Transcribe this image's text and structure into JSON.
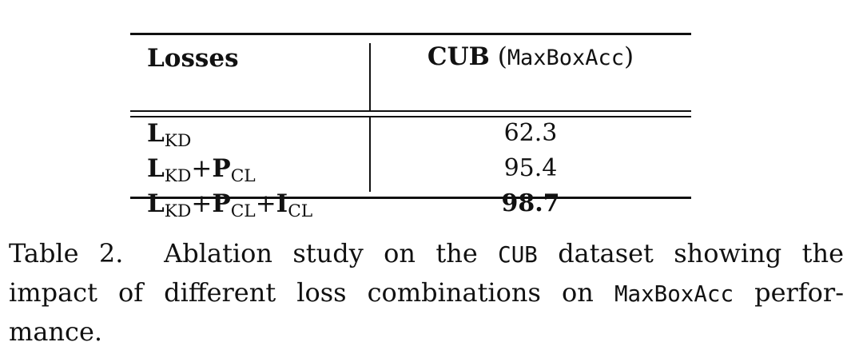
{
  "table": {
    "header": {
      "losses": "Losses",
      "metric_dataset": "CUB",
      "metric_name": "MaxBoxAcc"
    },
    "rows": [
      {
        "terms": [
          {
            "sym": "L",
            "sub": "KD"
          }
        ],
        "value": "62.3",
        "best": false
      },
      {
        "terms": [
          {
            "sym": "L",
            "sub": "KD"
          },
          {
            "sym": "P",
            "sub": "CL"
          }
        ],
        "value": "95.4",
        "best": false
      },
      {
        "terms": [
          {
            "sym": "L",
            "sub": "KD"
          },
          {
            "sym": "P",
            "sub": "CL"
          },
          {
            "sym": "I",
            "sub": "CL"
          }
        ],
        "value": "98.7",
        "best": true
      }
    ],
    "plus": "+"
  },
  "caption": {
    "label": "Table 2.",
    "line1_a": "Ablation study on the",
    "line1_code": "CUB",
    "line1_b": "dataset showing the",
    "line2_a": "impact of different loss combinations on",
    "line2_code": "MaxBoxAcc",
    "line2_b": "perfor-",
    "line3": "mance."
  }
}
